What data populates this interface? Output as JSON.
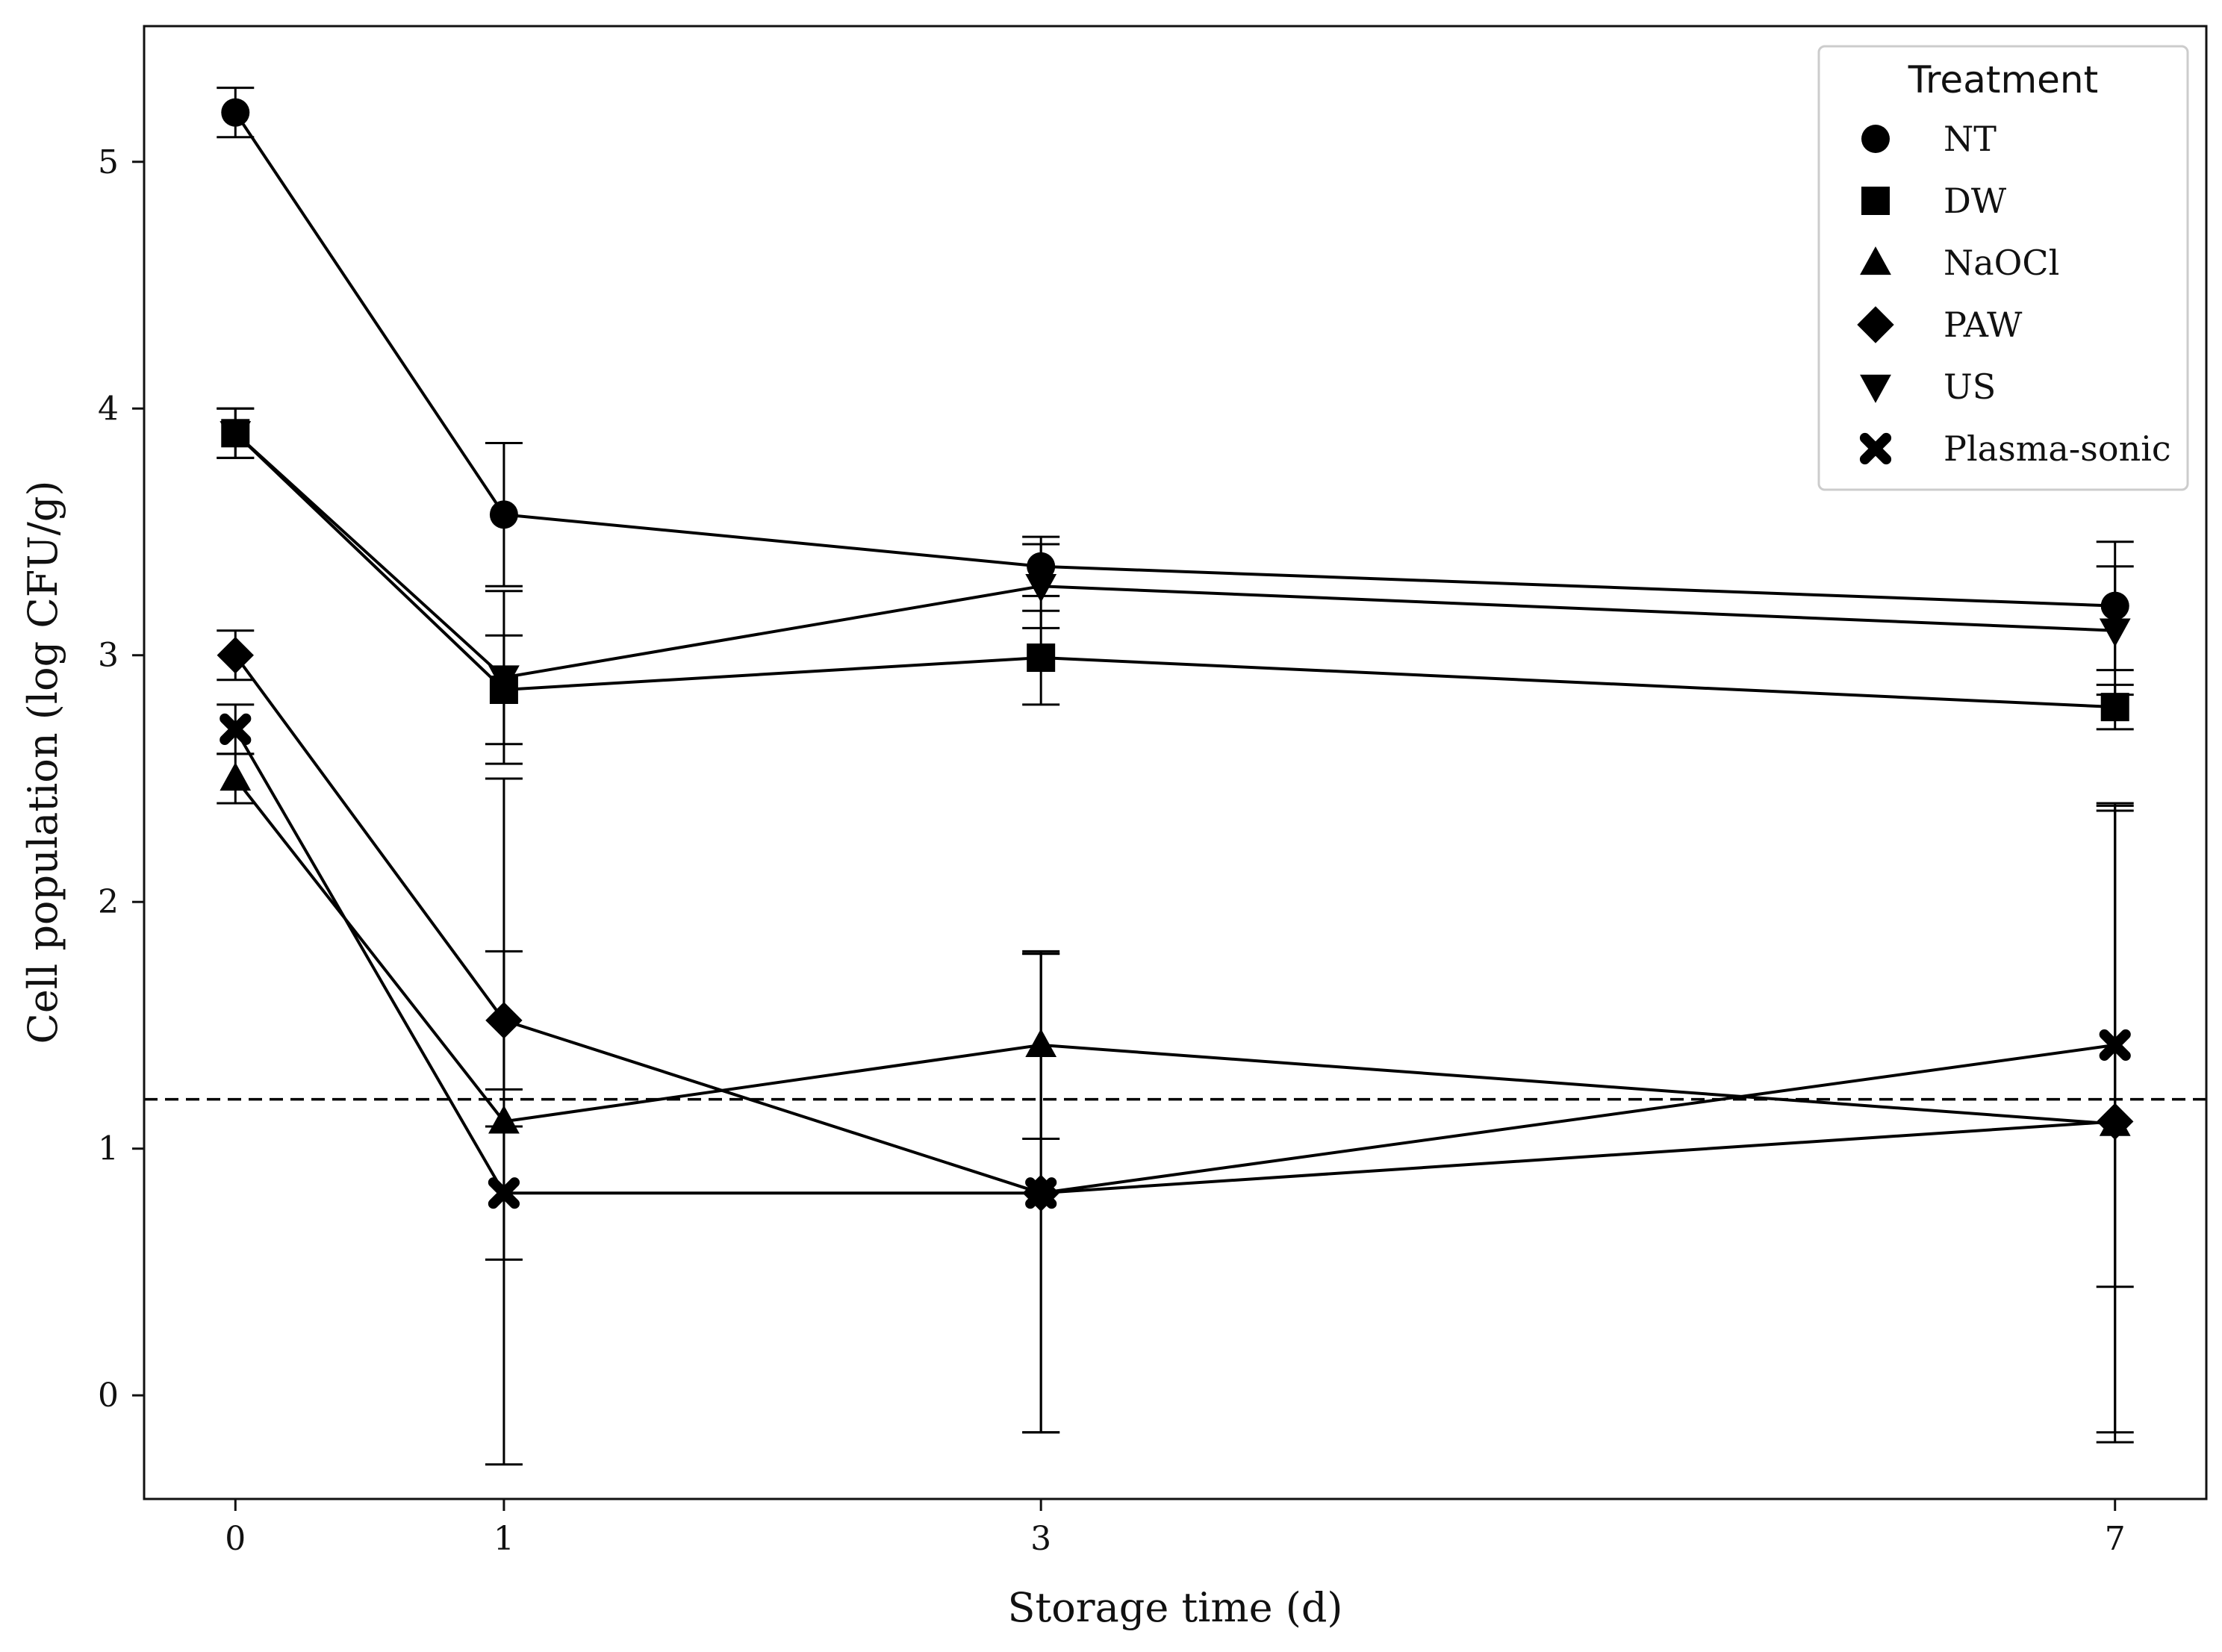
{
  "chart_data": {
    "type": "line",
    "xlabel": "Storage time (d)",
    "ylabel": "Cell population (log CFU/g)",
    "x_ticks": [
      "0",
      "1",
      "3",
      "7"
    ],
    "y_ticks": [
      "0",
      "1",
      "2",
      "3",
      "4",
      "5"
    ],
    "x_positions": [
      0,
      1,
      3,
      7
    ],
    "xlim": [
      -0.34,
      7.34
    ],
    "ylim": [
      -0.42,
      5.55
    ],
    "grid": false,
    "legend_title": "Treatment",
    "legend_position": "top-right",
    "reference_line": {
      "y": 1.2,
      "style": "dashed"
    },
    "line_color": "#000000",
    "series": [
      {
        "name": "NT",
        "marker": "circle",
        "values": [
          5.2,
          3.57,
          3.36,
          3.2
        ],
        "errors": [
          0.1,
          0.29,
          0.12,
          0.26
        ]
      },
      {
        "name": "DW",
        "marker": "square",
        "values": [
          3.9,
          2.86,
          2.99,
          2.79
        ],
        "errors": [
          0.1,
          0.22,
          0.19,
          0.09
        ]
      },
      {
        "name": "NaOCl",
        "marker": "triangle-up",
        "values": [
          2.5,
          1.11,
          1.42,
          1.1
        ],
        "errors": [
          0.1,
          1.39,
          0.38,
          1.29
        ]
      },
      {
        "name": "PAW",
        "marker": "diamond",
        "values": [
          3.0,
          1.52,
          0.82,
          1.11
        ],
        "errors": [
          0.1,
          0.28,
          0.97,
          1.26
        ]
      },
      {
        "name": "US",
        "marker": "triangle-down",
        "values": [
          3.9,
          2.91,
          3.28,
          3.1
        ],
        "errors": [
          0.1,
          0.35,
          0.17,
          0.26
        ]
      },
      {
        "name": "Plasma-sonic",
        "marker": "x",
        "values": [
          2.7,
          0.82,
          0.82,
          1.42
        ],
        "errors": [
          0.1,
          0.27,
          0.97,
          0.98
        ]
      }
    ]
  }
}
